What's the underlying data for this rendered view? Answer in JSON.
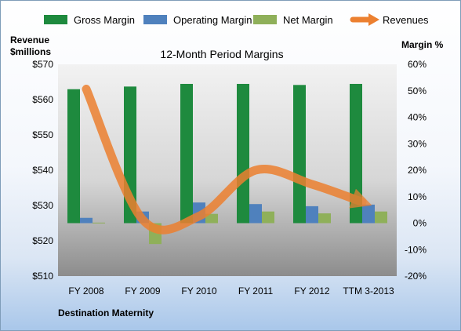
{
  "chart_data": {
    "type": "bar",
    "title": "12-Month Period Margins",
    "subtitle": "Destination Maternity",
    "ylabel_left": [
      "Revenue",
      "$millions"
    ],
    "ylabel_right": "Margin %",
    "categories": [
      "FY 2008",
      "FY 2009",
      "FY 2010",
      "FY 2011",
      "FY 2012",
      "TTM 3-2013"
    ],
    "left_axis": {
      "ticks": [
        "$510",
        "$520",
        "$530",
        "$540",
        "$550",
        "$560",
        "$570"
      ],
      "range": [
        510,
        570
      ]
    },
    "right_axis": {
      "ticks": [
        "-20%",
        "-10%",
        "0%",
        "10%",
        "20%",
        "30%",
        "40%",
        "50%",
        "60%"
      ],
      "range": [
        -20,
        60
      ]
    },
    "series": [
      {
        "name": "Gross Margin",
        "type": "bar",
        "axis": "right",
        "color": "#1e8a3e",
        "values": [
          50.6,
          51.6,
          52.6,
          52.6,
          52.2,
          52.6
        ]
      },
      {
        "name": "Operating Margin",
        "type": "bar",
        "axis": "right",
        "color": "#4f81bd",
        "values": [
          2.0,
          4.4,
          7.8,
          7.2,
          6.4,
          7.0
        ]
      },
      {
        "name": "Net Margin",
        "type": "bar",
        "axis": "right",
        "color": "#8fb05a",
        "values": [
          0.2,
          -7.9,
          3.5,
          4.4,
          3.7,
          4.4
        ]
      },
      {
        "name": "Revenues",
        "type": "line",
        "axis": "left",
        "color": "#ec8030",
        "values": [
          563,
          526,
          527,
          540,
          536,
          531
        ]
      }
    ],
    "legend_position": "top",
    "grid": false
  }
}
